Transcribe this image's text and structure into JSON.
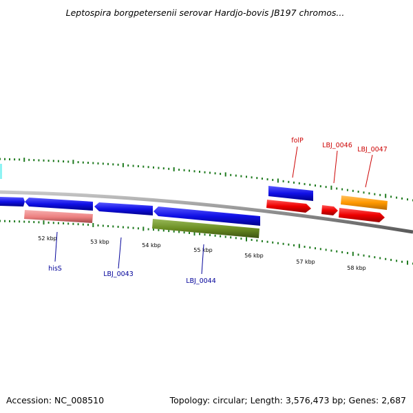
{
  "title": "Leptospira borgpetersenii serovar Hardjo-bovis JB197 chromos...",
  "footer": {
    "accession": "Accession: NC_008510",
    "summary": "Topology: circular; Length: 3,576,473 bp; Genes: 2,687"
  },
  "colors": {
    "backbone": "#8f8f8f",
    "tick": "#1f7a1f",
    "forward_label": "#cc0000",
    "reverse_label": "#000099",
    "blue_gene": "#1010e6",
    "red_gene": "#ee0000",
    "pink_gene": "#ec7f7f",
    "olive_gene": "#6b8e23",
    "orange_gene": "#ff9900"
  },
  "ticks": [
    {
      "label": "52 kbp"
    },
    {
      "label": "53 kbp"
    },
    {
      "label": "54 kbp"
    },
    {
      "label": "55 kbp"
    },
    {
      "label": "56 kbp"
    },
    {
      "label": "57 kbp"
    },
    {
      "label": "58 kbp"
    }
  ],
  "gene_labels": [
    {
      "id": "folP",
      "text": "folP",
      "strand": "forward"
    },
    {
      "id": "LBJ_0046",
      "text": "LBJ_0046",
      "strand": "forward"
    },
    {
      "id": "LBJ_0047",
      "text": "LBJ_0047",
      "strand": "forward"
    },
    {
      "id": "hisS",
      "text": "hisS",
      "strand": "reverse"
    },
    {
      "id": "LBJ_0043",
      "text": "LBJ_0043",
      "strand": "reverse"
    },
    {
      "id": "LBJ_0044",
      "text": "LBJ_0044",
      "strand": "reverse"
    }
  ]
}
